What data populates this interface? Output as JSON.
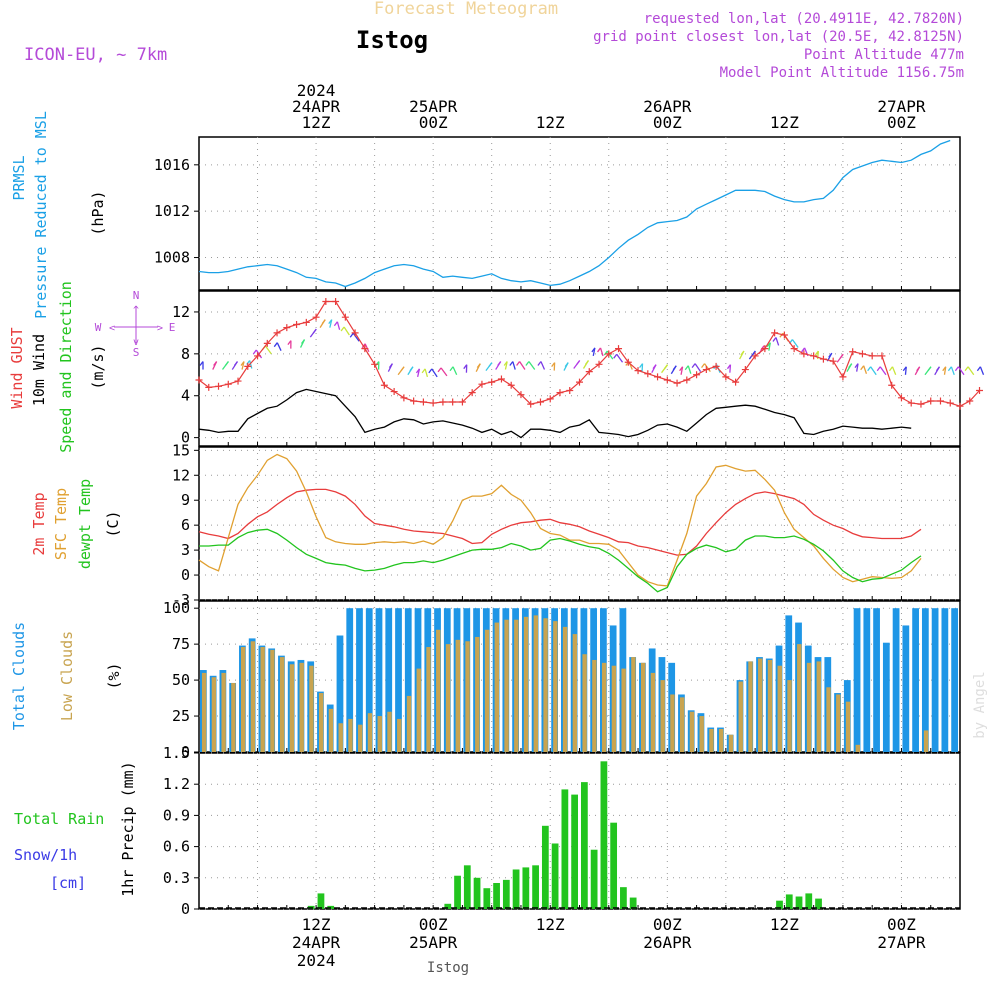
{
  "header": {
    "product": "Forecast Meteogram",
    "location": "Istog",
    "model": "ICON-EU, ~ 7km",
    "requested": "requested lon,lat (20.4911E, 42.7820N)",
    "grid": "grid point closest lon,lat (20.5E, 42.8125N)",
    "altitude": "Point Altitude 477m",
    "model_altitude": "Model Point Altitude 1156.75m",
    "footer": "Istog",
    "credit": "by Angel"
  },
  "time_axis": {
    "top_labels": [
      {
        "t": 12,
        "lines": [
          "2024",
          "24APR",
          "12Z"
        ]
      },
      {
        "t": 24,
        "lines": [
          "25APR",
          "00Z"
        ]
      },
      {
        "t": 36,
        "lines": [
          "12Z"
        ]
      },
      {
        "t": 48,
        "lines": [
          "26APR",
          "00Z"
        ]
      },
      {
        "t": 60,
        "lines": [
          "12Z"
        ]
      },
      {
        "t": 72,
        "lines": [
          "27APR",
          "00Z"
        ]
      }
    ],
    "bottom_labels": [
      {
        "t": 12,
        "lines": [
          "12Z",
          "24APR",
          "2024"
        ]
      },
      {
        "t": 24,
        "lines": [
          "00Z",
          "25APR"
        ]
      },
      {
        "t": 36,
        "lines": [
          "12Z"
        ]
      },
      {
        "t": 48,
        "lines": [
          "00Z",
          "26APR"
        ]
      },
      {
        "t": 60,
        "lines": [
          "12Z"
        ]
      },
      {
        "t": 72,
        "lines": [
          "00Z",
          "27APR"
        ]
      }
    ]
  },
  "colors": {
    "pressure": "#1aa0e6",
    "gust": "#e83c3c",
    "wind": "#000000",
    "temp2m": "#e83c3c",
    "sfctemp": "#e0a030",
    "dewpt": "#22c41e",
    "total_clouds": "#1e96e6",
    "low_clouds": "#c8a450",
    "rain": "#22c41e",
    "snow": "#3a3ae6",
    "purple": "#b44ad8"
  },
  "chart_data": [
    {
      "type": "line",
      "name": "pressure",
      "title": "PRMSL Pressure Reduced to MSL",
      "ylabel_left": [
        "PRMSL",
        "Pressure Reduced to MSL"
      ],
      "ylabel_right": "(hPa)",
      "yticks": [
        1008,
        1012,
        1016
      ],
      "ylim": [
        1005.2,
        1018.4
      ],
      "series": [
        {
          "name": "PRMSL",
          "x_start": 0,
          "x_step": 1,
          "values": [
            1006.8,
            1006.7,
            1006.7,
            1006.8,
            1007.0,
            1007.2,
            1007.3,
            1007.4,
            1007.3,
            1007.0,
            1006.7,
            1006.3,
            1006.2,
            1005.9,
            1005.8,
            1005.5,
            1005.8,
            1006.2,
            1006.7,
            1007.0,
            1007.3,
            1007.4,
            1007.3,
            1007.0,
            1006.8,
            1006.3,
            1006.4,
            1006.3,
            1006.2,
            1006.4,
            1006.6,
            1006.2,
            1006.0,
            1005.9,
            1006.0,
            1005.8,
            1005.6,
            1005.7,
            1006.0,
            1006.4,
            1006.8,
            1007.3,
            1008.0,
            1008.8,
            1009.5,
            1010.0,
            1010.6,
            1011.0,
            1011.1,
            1011.2,
            1011.5,
            1012.2,
            1012.6,
            1013.0,
            1013.4,
            1013.8,
            1013.8,
            1013.8,
            1013.7,
            1013.3,
            1013.0,
            1012.8,
            1012.8,
            1013.0,
            1013.1,
            1013.8,
            1014.9,
            1015.6,
            1015.9,
            1016.2,
            1016.4,
            1016.3,
            1016.2,
            1016.4,
            1016.9,
            1017.2,
            1017.8,
            1018.1
          ]
        }
      ]
    },
    {
      "type": "line",
      "name": "wind",
      "title": "Wind GUST 10m Wind Speed and Direction",
      "ylabel_left": [
        "Wind GUST",
        "10m Wind",
        "Speed and Direction"
      ],
      "ylabel_right": "(m/s)",
      "yticks": [
        0,
        4,
        8,
        12
      ],
      "ylim": [
        -0.8,
        14
      ],
      "compass": [
        "N",
        "W",
        "E",
        "S"
      ],
      "series": [
        {
          "name": "Wind GUST",
          "x_start": 0,
          "x_step": 1,
          "values": [
            5.5,
            4.8,
            4.9,
            5.1,
            5.4,
            6.8,
            7.8,
            9.0,
            10.0,
            10.5,
            10.8,
            11.0,
            11.5,
            13.0,
            13.0,
            11.5,
            10.0,
            8.5,
            7.0,
            5.0,
            4.4,
            3.8,
            3.5,
            3.4,
            3.3,
            3.4,
            3.4,
            3.4,
            4.3,
            5.1,
            5.3,
            5.6,
            5.0,
            4.1,
            3.2,
            3.4,
            3.7,
            4.3,
            4.5,
            5.3,
            6.3,
            7.0,
            8.0,
            8.5,
            7.2,
            6.4,
            6.1,
            5.8,
            5.5,
            5.2,
            5.5,
            6.0,
            6.5,
            6.8,
            5.8,
            5.3,
            6.5,
            7.8,
            8.5,
            10.0,
            9.8,
            8.5,
            8.0,
            7.8,
            7.5,
            7.3,
            5.8,
            8.2,
            8.0,
            7.8,
            7.8,
            5.0,
            3.8,
            3.3,
            3.2,
            3.5,
            3.5,
            3.3,
            3.0,
            3.5,
            4.5
          ]
        },
        {
          "name": "10m Wind",
          "x_start": 0,
          "x_step": 1,
          "values": [
            0.8,
            0.7,
            0.5,
            0.6,
            0.6,
            1.8,
            2.3,
            2.8,
            3.0,
            3.6,
            4.3,
            4.6,
            4.4,
            4.2,
            4.0,
            3.0,
            2.0,
            0.5,
            0.8,
            1.0,
            1.5,
            1.8,
            1.7,
            1.3,
            1.5,
            1.6,
            1.4,
            1.2,
            0.9,
            0.5,
            0.8,
            0.3,
            0.6,
            0.0,
            0.8,
            0.8,
            0.7,
            0.5,
            1.0,
            1.2,
            1.7,
            0.5,
            0.4,
            0.3,
            0.1,
            0.3,
            0.7,
            1.2,
            1.3,
            1.0,
            0.6,
            1.4,
            2.2,
            2.8,
            2.9,
            3.0,
            3.1,
            3.0,
            2.7,
            2.4,
            2.2,
            1.9,
            0.4,
            0.3,
            0.6,
            0.8,
            1.1,
            1.0,
            0.9,
            0.9,
            0.8,
            0.9,
            1.0,
            0.9
          ]
        },
        {
          "name": "Wind barbs (height m/s)",
          "x_start": 0,
          "x_step": 1,
          "values": [
            6.5,
            6.5,
            6.5,
            6.5,
            6.5,
            6.6,
            7.6,
            8.0,
            8.3,
            8.5,
            8.6,
            9.6,
            10.5,
            10.5,
            10.3,
            9.8,
            9.2,
            8.2,
            6.5,
            6.3,
            6.0,
            6.0,
            5.8,
            5.8,
            5.8,
            5.9,
            6.0,
            6.2,
            6.3,
            6.4,
            6.5,
            6.5,
            6.5,
            6.5,
            6.5,
            6.5,
            6.4,
            6.4,
            6.6,
            6.6,
            7.8,
            7.8,
            7.5,
            7.2,
            6.5,
            6.3,
            6.2,
            6.2,
            6.1,
            6.0,
            6.1,
            6.3,
            6.3,
            6.2,
            6.2,
            7.5,
            7.5,
            8.0,
            8.3,
            8.8,
            9.2,
            8.6,
            7.8,
            7.5,
            7.3,
            7.2,
            6.3,
            6.3,
            6.1,
            6.0,
            6.0,
            6.0,
            6.0,
            6.0,
            6.0,
            6.0,
            6.0,
            6.0,
            6.0,
            6.0,
            6.0
          ]
        }
      ]
    },
    {
      "type": "line",
      "name": "temperature",
      "title": "2m Temp SFC Temp dewpt Temp",
      "ylabel_left": [
        "2m Temp",
        "SFC Temp",
        "dewpt Temp"
      ],
      "ylabel_right": "(C)",
      "yticks": [
        -3,
        0,
        3,
        6,
        9,
        12,
        15
      ],
      "ylim": [
        -3,
        15.4
      ],
      "series": [
        {
          "name": "2m Temp",
          "x_start": 0,
          "x_step": 1,
          "values": [
            5.2,
            4.9,
            4.7,
            4.4,
            5.0,
            6.1,
            7.0,
            7.6,
            8.5,
            9.3,
            10.0,
            10.2,
            10.3,
            10.3,
            10.0,
            9.5,
            8.5,
            7.1,
            6.2,
            6.0,
            5.8,
            5.5,
            5.3,
            5.2,
            5.1,
            5.0,
            4.7,
            4.4,
            3.8,
            3.9,
            4.9,
            5.5,
            6.0,
            6.3,
            6.4,
            6.6,
            6.7,
            6.3,
            6.1,
            5.8,
            5.3,
            4.9,
            4.5,
            4.0,
            3.9,
            3.5,
            3.3,
            3.0,
            2.7,
            2.4,
            2.5,
            3.5,
            5.0,
            6.3,
            7.5,
            8.5,
            9.2,
            9.8,
            10.0,
            9.8,
            9.5,
            9.2,
            8.5,
            7.3,
            6.6,
            6.0,
            5.6,
            5.0,
            4.6,
            4.5,
            4.4,
            4.4,
            4.4,
            4.7,
            5.5
          ]
        },
        {
          "name": "SFC Temp",
          "x_start": 0,
          "x_step": 1,
          "values": [
            1.8,
            1.0,
            0.5,
            4.5,
            8.5,
            10.5,
            12.0,
            13.8,
            14.5,
            14.0,
            12.5,
            10.0,
            7.0,
            4.5,
            4.0,
            3.8,
            3.7,
            3.7,
            3.9,
            4.0,
            3.9,
            4.0,
            3.8,
            4.1,
            3.7,
            4.5,
            6.5,
            9.0,
            9.5,
            9.5,
            9.8,
            10.8,
            9.7,
            9.0,
            7.5,
            5.6,
            5.0,
            4.8,
            4.2,
            4.2,
            3.8,
            3.8,
            3.7,
            3.0,
            1.5,
            0.0,
            -0.8,
            -1.2,
            -1.3,
            1.8,
            5.0,
            9.5,
            11.0,
            13.0,
            13.2,
            12.8,
            12.5,
            12.6,
            11.5,
            10.2,
            7.5,
            5.5,
            4.5,
            3.5,
            2.0,
            0.7,
            -0.3,
            -0.8,
            -0.5,
            -0.2,
            -0.3,
            -0.4,
            -0.3,
            0.5,
            2.0
          ]
        },
        {
          "name": "dewpt Temp",
          "x_start": 0,
          "x_step": 1,
          "values": [
            3.5,
            3.5,
            3.6,
            3.6,
            4.5,
            5.1,
            5.4,
            5.5,
            5.0,
            4.2,
            3.3,
            2.5,
            2.0,
            1.5,
            1.3,
            1.2,
            0.8,
            0.5,
            0.6,
            0.8,
            1.2,
            1.5,
            1.5,
            1.7,
            1.5,
            1.8,
            2.2,
            2.6,
            3.0,
            3.1,
            3.1,
            3.3,
            3.8,
            3.5,
            3.0,
            3.2,
            4.2,
            4.4,
            4.1,
            3.7,
            3.4,
            3.2,
            2.6,
            1.8,
            0.8,
            -0.2,
            -1.0,
            -2.0,
            -1.5,
            1.0,
            2.5,
            3.2,
            3.6,
            3.3,
            2.8,
            3.1,
            4.2,
            4.7,
            4.7,
            4.5,
            4.5,
            4.7,
            4.3,
            3.7,
            2.9,
            1.8,
            0.5,
            -0.3,
            -0.8,
            -0.5,
            -0.4,
            0.1,
            0.6,
            1.5,
            2.3
          ]
        }
      ]
    },
    {
      "type": "bar",
      "name": "clouds",
      "title": "Total Clouds Low Clouds",
      "ylabel_left": [
        "Total Clouds",
        "Low Clouds"
      ],
      "ylabel_right": "(%)",
      "yticks": [
        0,
        25,
        50,
        75,
        100
      ],
      "ylim": [
        0,
        105
      ],
      "series": [
        {
          "name": "Total Clouds",
          "x_start": 0,
          "x_step": 1,
          "values": [
            57,
            53,
            57,
            48,
            74,
            79,
            74,
            72,
            67,
            63,
            64,
            63,
            42,
            33,
            81,
            100,
            100,
            100,
            100,
            100,
            100,
            100,
            100,
            100,
            100,
            100,
            100,
            100,
            100,
            100,
            100,
            100,
            100,
            100,
            100,
            100,
            100,
            100,
            100,
            100,
            100,
            100,
            88,
            100,
            66,
            62,
            72,
            66,
            62,
            40,
            29,
            27,
            17,
            17,
            12,
            50,
            63,
            66,
            65,
            74,
            95,
            90,
            74,
            66,
            66,
            41,
            50,
            100,
            100,
            100,
            76,
            100,
            88,
            100,
            100,
            100,
            100,
            100
          ]
        },
        {
          "name": "Low Clouds",
          "x_start": 0,
          "x_step": 1,
          "values": [
            55,
            52,
            55,
            48,
            73,
            77,
            73,
            71,
            66,
            61,
            62,
            60,
            41,
            30,
            20,
            23,
            19,
            27,
            25,
            28,
            23,
            39,
            58,
            73,
            85,
            75,
            78,
            77,
            80,
            85,
            90,
            92,
            92,
            94,
            95,
            93,
            91,
            87,
            82,
            68,
            64,
            62,
            60,
            58,
            66,
            62,
            55,
            50,
            40,
            38,
            28,
            25,
            16,
            16,
            12,
            49,
            63,
            65,
            64,
            60,
            50,
            75,
            62,
            63,
            45,
            40,
            35,
            5,
            0,
            0,
            0,
            0,
            0,
            0,
            15,
            0,
            0,
            0
          ]
        }
      ]
    },
    {
      "type": "bar",
      "name": "precip",
      "title": "1hr Precip (mm)",
      "ylabel_left": [
        "Total  Rain",
        "Snow/1h",
        "[cm]"
      ],
      "ylabel_right": "1hr Precip (mm)",
      "yticks": [
        0,
        0.3,
        0.6,
        0.9,
        1.2,
        1.5
      ],
      "ylim": [
        0,
        1.5
      ],
      "series": [
        {
          "name": "Total Rain",
          "x_start": 0,
          "x_step": 1,
          "values": [
            0,
            0,
            0,
            0,
            0,
            0,
            0,
            0,
            0,
            0,
            0,
            0.03,
            0.15,
            0.03,
            0,
            0,
            0,
            0,
            0,
            0,
            0,
            0,
            0,
            0,
            0,
            0.05,
            0.32,
            0.42,
            0.3,
            0.2,
            0.25,
            0.28,
            0.38,
            0.4,
            0.42,
            0.8,
            0.63,
            1.15,
            1.1,
            1.22,
            0.57,
            1.42,
            0.83,
            0.21,
            0.11,
            0,
            0,
            0,
            0,
            0,
            0,
            0,
            0,
            0,
            0,
            0,
            0,
            0,
            0,
            0.08,
            0.14,
            0.12,
            0.15,
            0.1,
            0,
            0,
            0,
            0,
            0,
            0,
            0,
            0,
            0,
            0,
            0,
            0,
            0,
            0
          ]
        }
      ]
    }
  ]
}
